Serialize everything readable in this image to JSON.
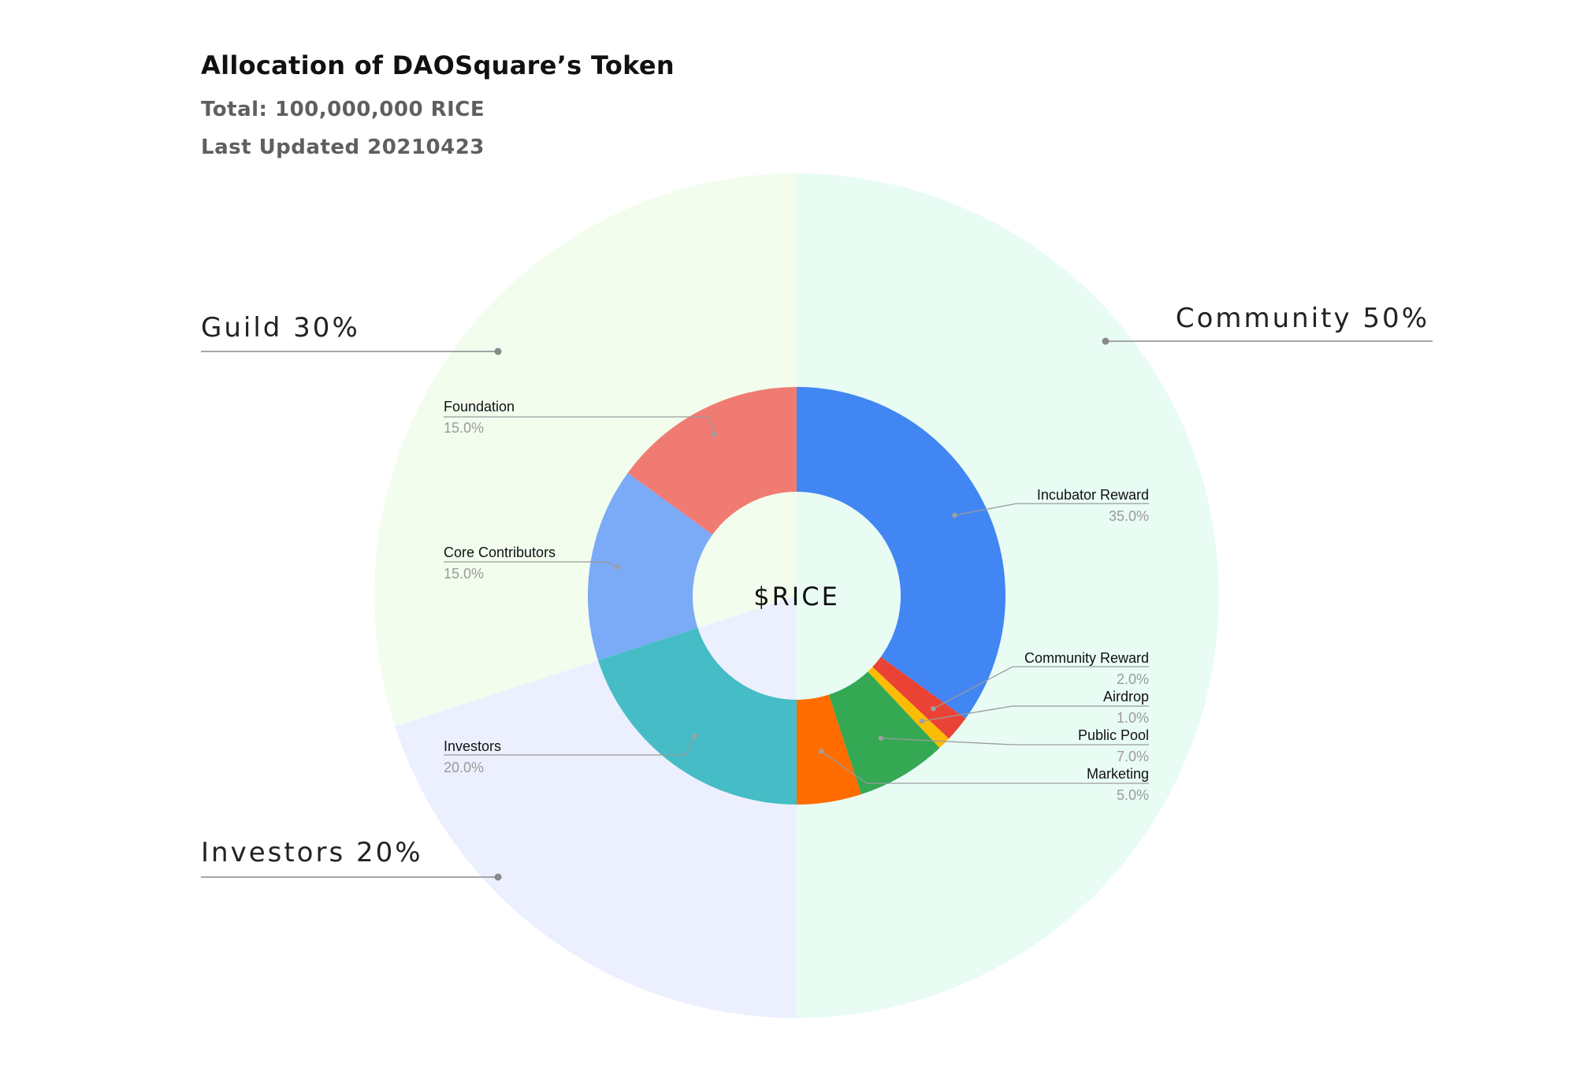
{
  "header": {
    "title": "Allocation of DAOSquare’s Token",
    "total": "Total: 100,000,000 RICE",
    "updated": "Last Updated 20210423"
  },
  "chart_data": {
    "type": "pie",
    "center_label": "$RICE",
    "outer_ring": [
      {
        "name": "Community",
        "label": "Community 50%",
        "value": 50,
        "color": "#e8fcf4"
      },
      {
        "name": "Investors",
        "label": "Investors 20%",
        "value": 20,
        "color": "#ecf0fe"
      },
      {
        "name": "Guild",
        "label": "Guild 30%",
        "value": 30,
        "color": "#f2fdee"
      }
    ],
    "inner_ring": [
      {
        "name": "Incubator Reward",
        "pct_label": "35.0%",
        "value": 35,
        "color": "#4286f4"
      },
      {
        "name": "Community Reward",
        "pct_label": "2.0%",
        "value": 2,
        "color": "#ea4335"
      },
      {
        "name": "Airdrop",
        "pct_label": "1.0%",
        "value": 1,
        "color": "#fbbc04"
      },
      {
        "name": "Public Pool",
        "pct_label": "7.0%",
        "value": 7,
        "color": "#34a853"
      },
      {
        "name": "Marketing",
        "pct_label": "5.0%",
        "value": 5,
        "color": "#ff6d01"
      },
      {
        "name": "Investors",
        "pct_label": "20.0%",
        "value": 20,
        "color": "#46bdc6"
      },
      {
        "name": "Core Contributors",
        "pct_label": "15.0%",
        "value": 15,
        "color": "#7baaf7"
      },
      {
        "name": "Foundation",
        "pct_label": "15.0%",
        "value": 15,
        "color": "#f07b72"
      }
    ]
  }
}
